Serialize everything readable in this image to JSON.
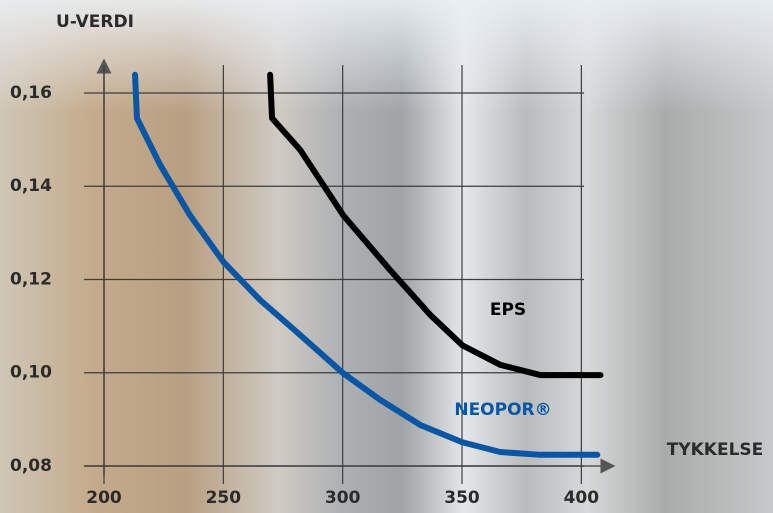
{
  "chart_data": {
    "type": "line",
    "y_label": "U-VERDI",
    "x_label": "TYKKELSE",
    "xlim": [
      200,
      412
    ],
    "ylim": [
      0.08,
      0.166
    ],
    "xticks": [
      200,
      250,
      300,
      350,
      400
    ],
    "yticks": [
      {
        "value": 0.08,
        "label": "0,08"
      },
      {
        "value": 0.1,
        "label": "0,10"
      },
      {
        "value": 0.12,
        "label": "0,12"
      },
      {
        "value": 0.14,
        "label": "0,14"
      },
      {
        "value": 0.16,
        "label": "0,16"
      }
    ],
    "grid": true,
    "series": [
      {
        "name": "EPS",
        "color": "#000000",
        "x": [
          269.6,
          270.4,
          282.2,
          300.2,
          319.9,
          336.7,
          350.1,
          366,
          382.8,
          408
        ],
        "values": [
          0.1639,
          0.1546,
          0.1478,
          0.1338,
          0.122,
          0.1124,
          0.1059,
          0.1017,
          0.0995,
          0.0995
        ]
      },
      {
        "name": "NEOPOR®",
        "color": "#0b56a4",
        "x": [
          213,
          213.8,
          223.5,
          236,
          250,
          265.4,
          282.2,
          300.2,
          315.7,
          332.5,
          350.1,
          366,
          382.8,
          406.7
        ],
        "values": [
          0.1639,
          0.1546,
          0.1446,
          0.1338,
          0.1238,
          0.1156,
          0.1081,
          0.0999,
          0.0942,
          0.0888,
          0.0851,
          0.083,
          0.0824,
          0.0824
        ]
      }
    ]
  }
}
